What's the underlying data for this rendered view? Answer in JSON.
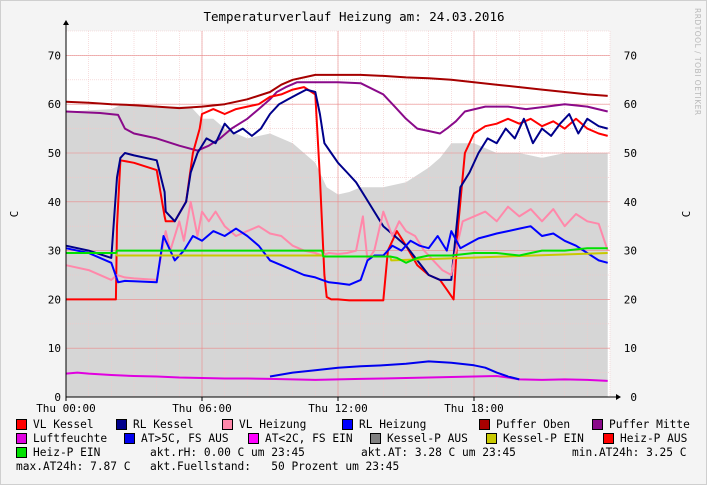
{
  "chart_data": {
    "type": "line",
    "title": "Temperaturverlauf Heizung am: 24.03.2016",
    "ylabel_left": "C",
    "ylabel_right": "C",
    "credit": "RRDTOOL / TOBI OETIKER",
    "ylim": [
      0,
      75
    ],
    "yticks": [
      0,
      10,
      20,
      30,
      40,
      50,
      60,
      70
    ],
    "x_hour_range": [
      0,
      24
    ],
    "xticks": [
      {
        "h": 0,
        "label": "Thu 00:00"
      },
      {
        "h": 6,
        "label": "Thu 06:00"
      },
      {
        "h": 12,
        "label": "Thu 12:00"
      },
      {
        "h": 18,
        "label": "Thu 18:00"
      }
    ],
    "fuellstand_area": {
      "name": "Kessel-P AUS / Fuellstand",
      "color": "#d6d6d6",
      "x": [
        0,
        2.0,
        2.5,
        4.0,
        5.5,
        6.0,
        6.5,
        7.0,
        8.0,
        9.0,
        10.0,
        11.0,
        11.5,
        12.0,
        12.5,
        13.0,
        14.0,
        15.0,
        16.0,
        16.5,
        17.0,
        18.0,
        19.0,
        20.0,
        21.0,
        22.0,
        23.0,
        23.9
      ],
      "y": [
        58.5,
        59.0,
        60.0,
        59.5,
        59.5,
        57.0,
        57.0,
        55.0,
        53.0,
        54.0,
        52.0,
        48.0,
        43.0,
        41.5,
        42.0,
        43.0,
        43.0,
        44.0,
        47.0,
        49.0,
        52.0,
        52.0,
        50.0,
        50.0,
        49.0,
        50.0,
        50.0,
        50.0
      ]
    },
    "series": [
      {
        "name": "Puffer Oben",
        "color": "#a60000",
        "width": 2,
        "x": [
          0,
          1,
          2,
          3,
          4,
          5,
          6,
          7,
          8,
          9,
          9.5,
          10,
          10.5,
          11,
          11.5,
          12,
          13,
          14,
          15,
          16,
          17,
          18,
          19,
          20,
          21,
          22,
          23,
          23.9
        ],
        "y": [
          60.5,
          60.3,
          60.0,
          59.8,
          59.5,
          59.2,
          59.5,
          60.0,
          61.0,
          62.5,
          64.0,
          65.0,
          65.5,
          66.0,
          66.0,
          66.0,
          66.0,
          65.8,
          65.5,
          65.3,
          65.0,
          64.5,
          64.0,
          63.5,
          63.0,
          62.5,
          62.0,
          61.7
        ]
      },
      {
        "name": "Puffer Mitte",
        "color": "#8a0a8a",
        "width": 2,
        "x": [
          0,
          1.5,
          2.3,
          2.6,
          3.0,
          4.0,
          5.0,
          5.8,
          6.3,
          6.8,
          7.3,
          8.0,
          8.5,
          9.0,
          9.3,
          9.7,
          10.2,
          11.0,
          12.0,
          13.0,
          14.0,
          14.5,
          15.0,
          15.5,
          16.0,
          16.5,
          16.8,
          17.2,
          17.6,
          18.5,
          19.5,
          20.3,
          21.2,
          22.0,
          23.0,
          23.9
        ],
        "y": [
          58.5,
          58.2,
          57.8,
          55.0,
          54.0,
          53.0,
          51.5,
          50.5,
          51.5,
          53.0,
          55.0,
          57.0,
          59.0,
          61.0,
          62.5,
          63.5,
          64.5,
          64.5,
          64.5,
          64.3,
          62.0,
          59.5,
          57.0,
          55.0,
          54.5,
          54.0,
          55.0,
          56.5,
          58.5,
          59.5,
          59.5,
          59.0,
          59.5,
          60.0,
          59.5,
          58.5
        ]
      },
      {
        "name": "VL Kessel",
        "color": "#ff0000",
        "width": 2,
        "x": [
          0,
          1.0,
          2.2,
          2.25,
          2.4,
          3.0,
          4.0,
          4.35,
          4.4,
          4.8,
          5.3,
          5.6,
          5.9,
          6.0,
          6.5,
          7.0,
          7.5,
          8.0,
          8.5,
          9.0,
          9.5,
          10.0,
          10.5,
          11.0,
          11.2,
          11.4,
          11.5,
          11.7,
          12.0,
          12.5,
          13.0,
          13.6,
          14.0,
          14.2,
          14.6,
          15.0,
          15.5,
          16.0,
          16.5,
          16.8,
          17.1,
          17.3,
          17.6,
          18.0,
          18.5,
          19.0,
          19.5,
          20.0,
          20.5,
          21.0,
          21.5,
          22.0,
          22.5,
          23.0,
          23.5,
          23.9
        ],
        "y": [
          20.0,
          20.0,
          20.0,
          35.0,
          48.5,
          48.0,
          46.5,
          37.0,
          36.0,
          36.0,
          40.0,
          50.0,
          55.0,
          58.0,
          59.0,
          58.0,
          59.0,
          59.5,
          60.0,
          61.5,
          62.0,
          63.0,
          63.5,
          62.0,
          45.0,
          25.0,
          20.5,
          20.0,
          20.0,
          19.8,
          19.8,
          19.8,
          19.8,
          30.0,
          34.0,
          31.0,
          27.0,
          25.0,
          24.0,
          22.0,
          20.0,
          35.0,
          50.0,
          54.0,
          55.5,
          56.0,
          57.0,
          56.0,
          57.0,
          55.5,
          56.5,
          55.0,
          57.0,
          55.0,
          54.0,
          53.5
        ]
      },
      {
        "name": "RL Kessel",
        "color": "#00008b",
        "width": 2,
        "x": [
          0,
          1.0,
          2.0,
          2.25,
          2.4,
          2.6,
          3.0,
          4.0,
          4.35,
          4.4,
          4.8,
          5.3,
          5.5,
          5.8,
          6.2,
          6.6,
          7.0,
          7.4,
          7.8,
          8.2,
          8.6,
          9.0,
          9.4,
          9.8,
          10.2,
          10.6,
          11.0,
          11.2,
          11.4,
          11.7,
          12.0,
          12.4,
          12.8,
          13.2,
          13.6,
          14.0,
          14.5,
          15.0,
          15.5,
          16.0,
          16.5,
          17.0,
          17.4,
          17.8,
          18.2,
          18.6,
          19.0,
          19.4,
          19.8,
          20.2,
          20.6,
          21.0,
          21.4,
          21.8,
          22.2,
          22.6,
          23.0,
          23.5,
          23.9
        ],
        "y": [
          31.0,
          30.0,
          28.5,
          45.0,
          49.0,
          50.0,
          49.5,
          48.5,
          42.0,
          38.0,
          36.0,
          40.0,
          46.0,
          50.0,
          53.0,
          52.0,
          56.0,
          54.0,
          55.0,
          53.5,
          55.0,
          58.0,
          60.0,
          61.0,
          62.0,
          63.0,
          62.5,
          58.0,
          52.0,
          50.0,
          48.0,
          46.0,
          44.0,
          41.0,
          38.0,
          35.0,
          33.0,
          31.0,
          28.0,
          25.0,
          24.0,
          24.0,
          43.0,
          46.0,
          50.0,
          53.0,
          52.0,
          55.0,
          53.0,
          57.0,
          52.0,
          55.0,
          53.5,
          56.0,
          58.0,
          54.0,
          57.0,
          55.5,
          55.0
        ]
      },
      {
        "name": "VL Heizung",
        "color": "#ff88aa",
        "width": 2,
        "x": [
          0,
          1.0,
          2.0,
          2.25,
          2.6,
          3.0,
          4.0,
          4.4,
          4.6,
          5.0,
          5.2,
          5.5,
          5.8,
          6.0,
          6.3,
          6.6,
          7.0,
          7.5,
          8.0,
          8.5,
          9.0,
          9.5,
          10.0,
          10.5,
          11.0,
          11.3,
          11.6,
          12.0,
          12.4,
          12.8,
          13.1,
          13.3,
          13.6,
          14.0,
          14.4,
          14.7,
          15.0,
          15.4,
          15.8,
          16.2,
          16.6,
          17.0,
          17.2,
          17.5,
          18.0,
          18.5,
          19.0,
          19.5,
          20.0,
          20.5,
          21.0,
          21.5,
          22.0,
          22.5,
          23.0,
          23.5,
          23.9
        ],
        "y": [
          27.0,
          26.0,
          24.0,
          25.0,
          24.5,
          24.3,
          24.0,
          34.0,
          30.0,
          36.0,
          32.0,
          40.0,
          33.0,
          38.0,
          36.0,
          38.0,
          35.0,
          33.0,
          34.0,
          35.0,
          33.5,
          33.0,
          31.0,
          30.0,
          29.5,
          29.0,
          29.5,
          29.3,
          29.5,
          30.0,
          37.0,
          28.0,
          30.0,
          38.0,
          33.0,
          36.0,
          34.0,
          33.0,
          30.0,
          28.0,
          26.0,
          25.0,
          30.0,
          36.0,
          37.0,
          38.0,
          36.0,
          39.0,
          37.0,
          38.5,
          36.0,
          38.5,
          35.0,
          37.5,
          36.0,
          35.5,
          30.0
        ]
      },
      {
        "name": "RL Heizung",
        "color": "#0000ff",
        "width": 2,
        "x": [
          0,
          1.0,
          2.0,
          2.3,
          2.6,
          3.0,
          4.0,
          4.3,
          4.5,
          4.8,
          5.2,
          5.6,
          6.0,
          6.5,
          7.0,
          7.5,
          8.0,
          8.5,
          9.0,
          9.5,
          10.0,
          10.5,
          11.0,
          11.3,
          11.6,
          12.0,
          12.5,
          13.0,
          13.3,
          13.6,
          14.0,
          14.4,
          14.8,
          15.2,
          15.6,
          16.0,
          16.4,
          16.8,
          17.0,
          17.4,
          17.8,
          18.2,
          18.6,
          19.0,
          19.5,
          20.0,
          20.5,
          21.0,
          21.5,
          22.0,
          22.5,
          23.0,
          23.5,
          23.9
        ],
        "y": [
          30.5,
          29.5,
          27.5,
          23.5,
          23.8,
          23.7,
          23.5,
          33.0,
          31.0,
          28.0,
          30.0,
          33.0,
          32.0,
          34.0,
          33.0,
          34.5,
          33.0,
          31.0,
          28.0,
          27.0,
          26.0,
          25.0,
          24.5,
          24.0,
          23.5,
          23.3,
          23.0,
          24.0,
          28.0,
          29.0,
          29.0,
          31.0,
          30.0,
          32.0,
          31.0,
          30.5,
          33.0,
          30.0,
          34.0,
          30.5,
          31.5,
          32.5,
          33.0,
          33.5,
          34.0,
          34.5,
          35.0,
          33.0,
          33.5,
          32.0,
          31.0,
          29.5,
          28.0,
          27.5
        ]
      },
      {
        "name": "Kessel-P EIN",
        "color": "#c8c800",
        "width": 2,
        "x": [
          0,
          2.2,
          2.25,
          11.3,
          11.35,
          14.3,
          14.35,
          23.9
        ],
        "y": [
          29.5,
          29.5,
          29.0,
          29.0,
          28.8,
          28.8,
          28.0,
          29.5
        ]
      },
      {
        "name": "Heiz-P EIN",
        "color": "#00e000",
        "width": 2,
        "x": [
          0,
          2.2,
          2.25,
          11.3,
          11.35,
          14.3,
          14.6,
          15.0,
          15.5,
          16.0,
          17.0,
          18.0,
          19.0,
          20.0,
          21.0,
          22.0,
          23.0,
          23.9
        ],
        "y": [
          29.5,
          29.5,
          30.0,
          30.0,
          28.8,
          28.8,
          28.5,
          27.5,
          28.5,
          29.0,
          29.0,
          29.5,
          29.5,
          29.0,
          30.0,
          30.0,
          30.5,
          30.5
        ]
      },
      {
        "name": "Luftfeuchte",
        "color": "#e000e0",
        "width": 2,
        "x": [
          0,
          0.5,
          1.0,
          2.0,
          3.0,
          4.0,
          5.0,
          6.0,
          7.0,
          8.0,
          9.0,
          10.0,
          11.0,
          12.0,
          13.0,
          14.0,
          15.0,
          16.0,
          17.0,
          18.0,
          19.0,
          19.5,
          20.0,
          21.0,
          22.0,
          23.0,
          23.9
        ],
        "y": [
          4.8,
          5.0,
          4.8,
          4.5,
          4.3,
          4.2,
          4.0,
          3.9,
          3.8,
          3.8,
          3.7,
          3.6,
          3.5,
          3.6,
          3.7,
          3.8,
          3.9,
          4.0,
          4.1,
          4.2,
          4.3,
          4.0,
          3.6,
          3.5,
          3.6,
          3.5,
          3.3
        ]
      },
      {
        "name": "AT>5C, FS AUS",
        "color": "#0000ee",
        "width": 2,
        "x": [
          9.0,
          10.0,
          11.0,
          12.0,
          13.0,
          14.0,
          15.0,
          16.0,
          17.0,
          18.0,
          18.5,
          19.0,
          19.5,
          20.0
        ],
        "y": [
          4.2,
          5.0,
          5.5,
          6.0,
          6.3,
          6.5,
          6.8,
          7.3,
          7.0,
          6.5,
          6.0,
          5.0,
          4.2,
          3.6
        ]
      }
    ],
    "legend": {
      "row1": [
        {
          "label": "VL Kessel",
          "color": "#ff0000"
        },
        {
          "label": "RL Kessel",
          "color": "#00008b"
        },
        {
          "label": "VL Heizung",
          "color": "#ff88aa"
        },
        {
          "label": "RL Heizung",
          "color": "#0000ff"
        },
        {
          "label": "Puffer Oben",
          "color": "#a60000"
        },
        {
          "label": "Puffer Mitte",
          "color": "#8a0a8a"
        }
      ],
      "row2": [
        {
          "label": "Luftfeuchte",
          "color": "#e000e0"
        },
        {
          "label": "AT>5C, FS AUS",
          "color": "#0000ee"
        },
        {
          "label": "AT<2C, FS EIN",
          "color": "#ff00ff"
        },
        {
          "label": "Kessel-P AUS",
          "color": "#808080"
        },
        {
          "label": "Kessel-P EIN",
          "color": "#c8c800"
        },
        {
          "label": "Heiz-P AUS",
          "color": "#ff0000"
        }
      ],
      "row3_item": {
        "label": "Heiz-P EIN",
        "color": "#00e000"
      }
    },
    "stats": {
      "akt_rh": "akt.rH: 0.00 C um 23:45",
      "akt_at": "akt.AT: 3.28 C um 23:45",
      "min_at": "min.AT24h: 3.25 C",
      "max_at": "max.AT24h: 7.87 C",
      "fuellstand": "akt.Fuellstand:   50 Prozent um 23:45"
    },
    "grid": true
  }
}
